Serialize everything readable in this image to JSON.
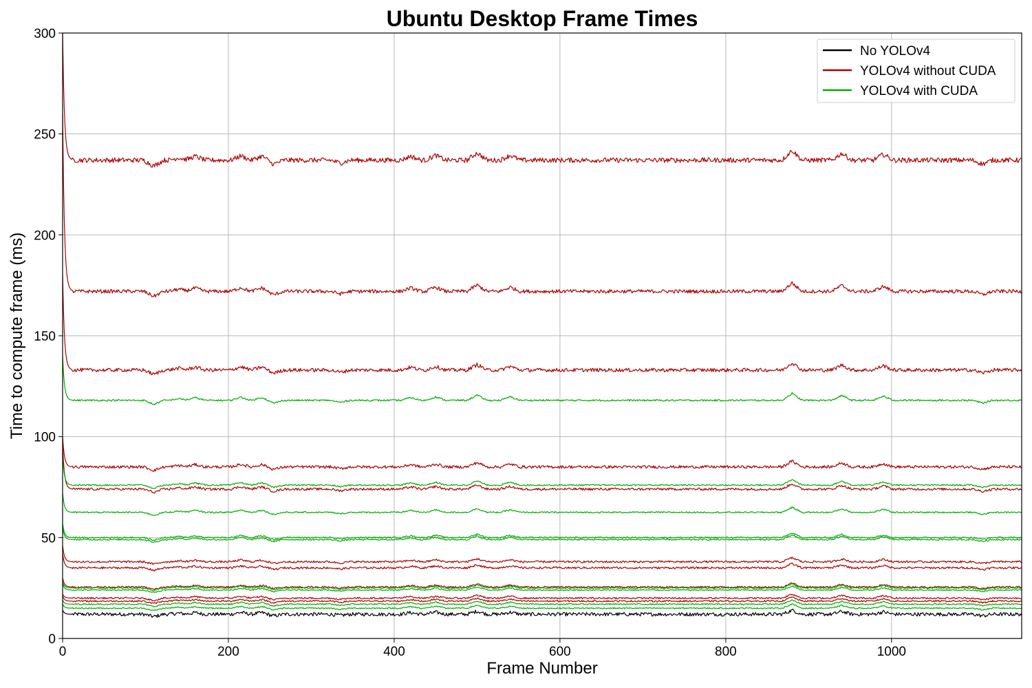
{
  "chart_data": {
    "type": "line",
    "title": "Ubuntu Desktop Frame Times",
    "xlabel": "Frame Number",
    "ylabel": "Time to compute frame (ms)",
    "xlim": [
      0,
      1157
    ],
    "ylim": [
      0,
      300
    ],
    "xticks": [
      0,
      200,
      400,
      600,
      800,
      1000
    ],
    "yticks": [
      0,
      50,
      100,
      150,
      200,
      250,
      300
    ],
    "grid": true,
    "legend_position": "top-right",
    "legend": [
      {
        "label": "No YOLOv4",
        "color": "#000000"
      },
      {
        "label": "YOLOv4 without CUDA",
        "color": "#aa0000"
      },
      {
        "label": "YOLOv4 with CUDA",
        "color": "#00aa00"
      }
    ],
    "series": [
      {
        "group": "No YOLOv4",
        "color": "#000000",
        "steady": 12,
        "start": 14,
        "noise": 0.9
      },
      {
        "group": "YOLOv4 without CUDA",
        "color": "#aa0000",
        "steady": 237,
        "start": 300,
        "noise": 1.2
      },
      {
        "group": "YOLOv4 without CUDA",
        "color": "#aa0000",
        "steady": 172,
        "start": 260,
        "noise": 0.9
      },
      {
        "group": "YOLOv4 without CUDA",
        "color": "#aa0000",
        "steady": 133,
        "start": 180,
        "noise": 0.9
      },
      {
        "group": "YOLOv4 without CUDA",
        "color": "#aa0000",
        "steady": 85,
        "start": 100,
        "noise": 0.7
      },
      {
        "group": "YOLOv4 without CUDA",
        "color": "#aa0000",
        "steady": 74,
        "start": 96,
        "noise": 0.6
      },
      {
        "group": "YOLOv4 without CUDA",
        "color": "#aa0000",
        "steady": 38,
        "start": 46,
        "noise": 0.5
      },
      {
        "group": "YOLOv4 without CUDA",
        "color": "#aa0000",
        "steady": 35,
        "start": 42,
        "noise": 0.5
      },
      {
        "group": "YOLOv4 without CUDA",
        "color": "#aa0000",
        "steady": 25.5,
        "start": 30,
        "noise": 0.4
      },
      {
        "group": "YOLOv4 without CUDA",
        "color": "#aa0000",
        "steady": 20,
        "start": 22,
        "noise": 0.4
      },
      {
        "group": "YOLOv4 without CUDA",
        "color": "#aa0000",
        "steady": 18.5,
        "start": 21,
        "noise": 0.4
      },
      {
        "group": "YOLOv4 with CUDA",
        "color": "#00aa00",
        "steady": 118,
        "start": 140,
        "noise": 0.4
      },
      {
        "group": "YOLOv4 with CUDA",
        "color": "#00aa00",
        "steady": 76,
        "start": 90,
        "noise": 0.35
      },
      {
        "group": "YOLOv4 with CUDA",
        "color": "#00aa00",
        "steady": 62.5,
        "start": 72,
        "noise": 0.35
      },
      {
        "group": "YOLOv4 with CUDA",
        "color": "#00aa00",
        "steady": 50,
        "start": 57,
        "noise": 0.35
      },
      {
        "group": "YOLOv4 with CUDA",
        "color": "#00aa00",
        "steady": 49,
        "start": 55,
        "noise": 0.35
      },
      {
        "group": "YOLOv4 with CUDA",
        "color": "#00aa00",
        "steady": 25,
        "start": 28,
        "noise": 0.3
      },
      {
        "group": "YOLOv4 with CUDA",
        "color": "#00aa00",
        "steady": 24,
        "start": 27,
        "noise": 0.3
      },
      {
        "group": "YOLOv4 with CUDA",
        "color": "#00aa00",
        "steady": 17,
        "start": 19,
        "noise": 0.3
      },
      {
        "group": "YOLOv4 with CUDA",
        "color": "#00aa00",
        "steady": 15,
        "start": 17,
        "noise": 0.3
      }
    ]
  }
}
